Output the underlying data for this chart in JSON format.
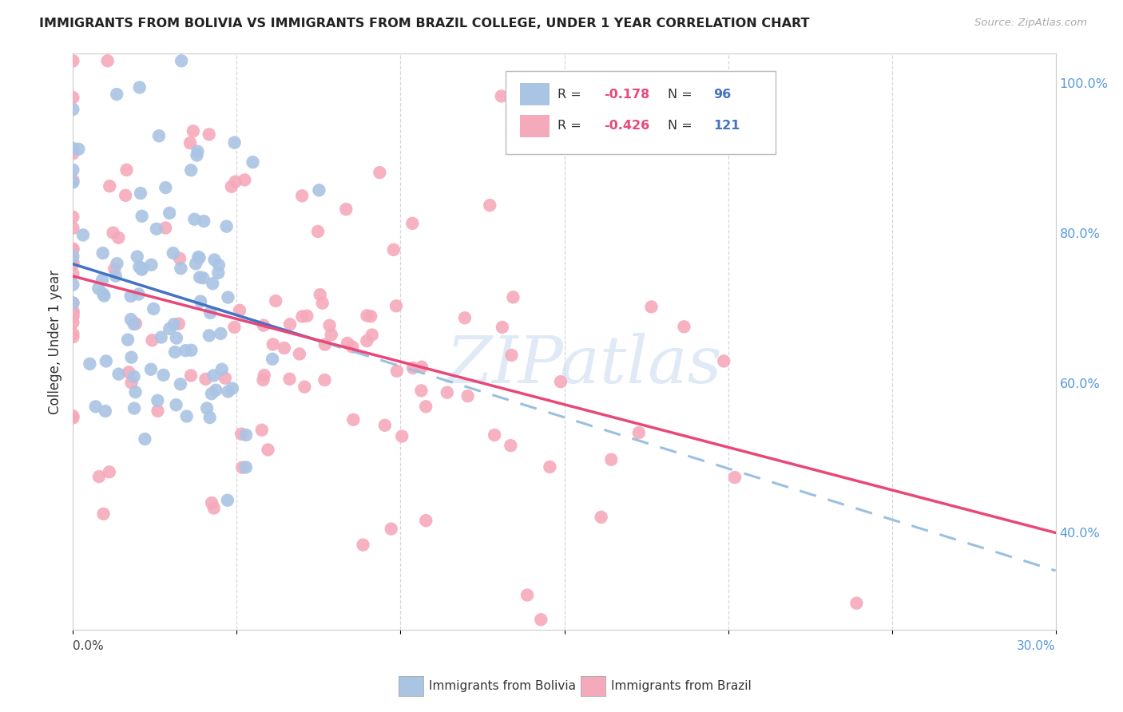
{
  "title": "IMMIGRANTS FROM BOLIVIA VS IMMIGRANTS FROM BRAZIL COLLEGE, UNDER 1 YEAR CORRELATION CHART",
  "source": "Source: ZipAtlas.com",
  "ylabel": "College, Under 1 year",
  "bolivia_R": -0.178,
  "bolivia_N": 96,
  "brazil_R": -0.426,
  "brazil_N": 121,
  "bolivia_color": "#aac4e4",
  "brazil_color": "#f5aabb",
  "bolivia_line_color": "#4472c4",
  "brazil_line_color": "#e84878",
  "dashed_line_color": "#9bbfe0",
  "watermark": "ZIPatlas",
  "watermark_color": "#c8d8ef",
  "xmin": 0.0,
  "xmax": 0.3,
  "ymin": 0.27,
  "ymax": 1.04,
  "right_ytick_vals": [
    1.0,
    0.8,
    0.6,
    0.4
  ],
  "right_ytick_labels": [
    "100.0%",
    "80.0%",
    "60.0%",
    "40.0%"
  ],
  "xtick_vals": [
    0.0,
    0.05,
    0.1,
    0.15,
    0.2,
    0.25,
    0.3
  ],
  "xlabel_bottom_left": "0.0%",
  "xlabel_bottom_right": "30.0%",
  "legend_R_color": "#e84878",
  "legend_N_color": "#4472c4"
}
